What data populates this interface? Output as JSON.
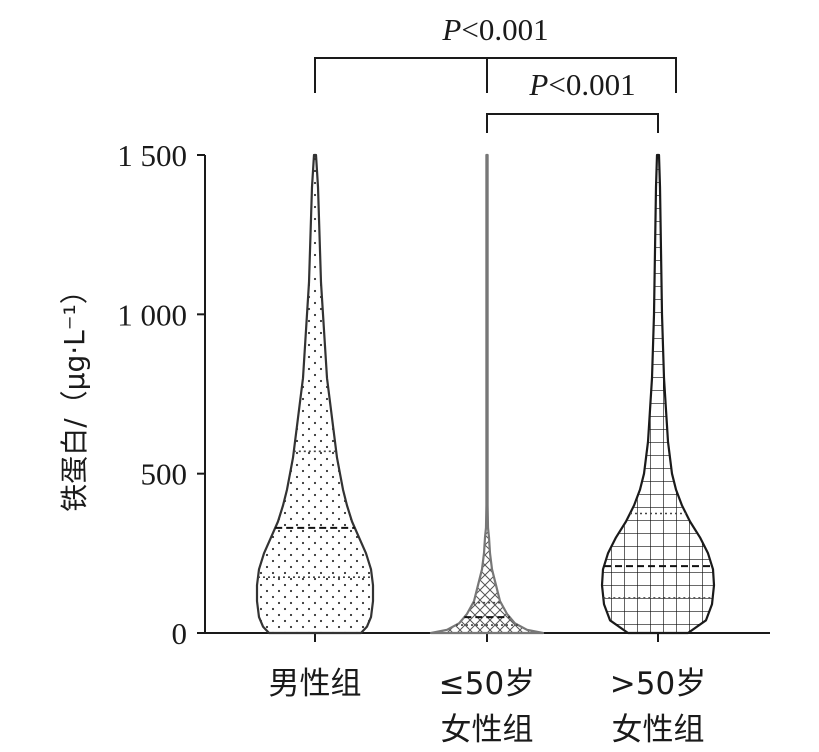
{
  "chart_data": {
    "type": "violin",
    "ylabel": "铁蛋白/（μg·L⁻¹）",
    "ylim": [
      0,
      1500
    ],
    "yticks": [
      {
        "value": 0,
        "label": "0"
      },
      {
        "value": 500,
        "label": "500"
      },
      {
        "value": 1000,
        "label": "1 000"
      },
      {
        "value": 1500,
        "label": "1 500"
      }
    ],
    "groups": [
      {
        "label_lines": [
          "男性组"
        ],
        "pattern": "dots",
        "color": "#333333",
        "max": 1500,
        "median": 330,
        "q1": 175,
        "q3": 570,
        "profile": [
          [
            0,
            46
          ],
          [
            20,
            52
          ],
          [
            50,
            56
          ],
          [
            100,
            58
          ],
          [
            150,
            58
          ],
          [
            200,
            56
          ],
          [
            250,
            51
          ],
          [
            300,
            44
          ],
          [
            350,
            37
          ],
          [
            400,
            32
          ],
          [
            450,
            28
          ],
          [
            500,
            25
          ],
          [
            550,
            22
          ],
          [
            600,
            20
          ],
          [
            650,
            18
          ],
          [
            700,
            16
          ],
          [
            750,
            14
          ],
          [
            800,
            12
          ],
          [
            900,
            10
          ],
          [
            1000,
            8
          ],
          [
            1100,
            6
          ],
          [
            1200,
            5
          ],
          [
            1300,
            4
          ],
          [
            1400,
            3
          ],
          [
            1500,
            1
          ]
        ]
      },
      {
        "label_lines": [
          "≤50岁",
          "女性组"
        ],
        "pattern": "cross",
        "color": "#777777",
        "max": 1500,
        "median": 50,
        "q1": 25,
        "q3": 95,
        "profile": [
          [
            0,
            56
          ],
          [
            10,
            40
          ],
          [
            30,
            28
          ],
          [
            60,
            20
          ],
          [
            100,
            13
          ],
          [
            150,
            9
          ],
          [
            200,
            5
          ],
          [
            250,
            3
          ],
          [
            300,
            2
          ],
          [
            330,
            1
          ],
          [
            400,
            0.6
          ],
          [
            1500,
            0.6
          ]
        ]
      },
      {
        "label_lines": [
          ">50岁",
          "女性组"
        ],
        "pattern": "grid",
        "color": "#1a1a1a",
        "max": 1500,
        "median": 210,
        "q1": 110,
        "q3": 375,
        "profile": [
          [
            0,
            30
          ],
          [
            40,
            48
          ],
          [
            90,
            54
          ],
          [
            150,
            56
          ],
          [
            200,
            55
          ],
          [
            250,
            50
          ],
          [
            300,
            42
          ],
          [
            350,
            32
          ],
          [
            400,
            24
          ],
          [
            450,
            18
          ],
          [
            500,
            14
          ],
          [
            600,
            10
          ],
          [
            700,
            8
          ],
          [
            800,
            6
          ],
          [
            1000,
            4
          ],
          [
            1200,
            3
          ],
          [
            1400,
            2
          ],
          [
            1500,
            1
          ]
        ]
      }
    ],
    "comparisons": [
      {
        "text_p": "P",
        "text_rest": "<0.001",
        "from": 0,
        "to": 2
      },
      {
        "text_p": "P",
        "text_rest": "<0.001",
        "from": 1,
        "to": 2
      }
    ]
  }
}
